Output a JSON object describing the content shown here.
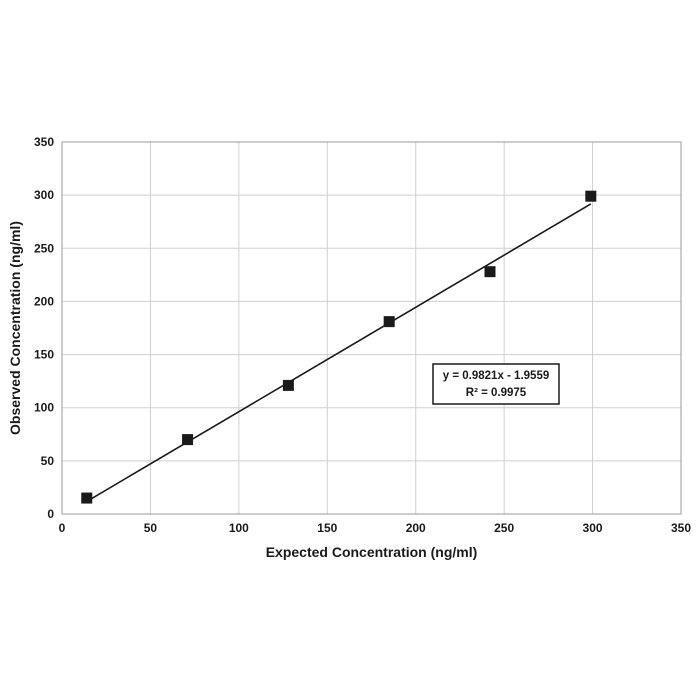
{
  "chart_data": {
    "type": "scatter",
    "title": "",
    "xlabel": "Expected Concentration (ng/ml)",
    "ylabel": "Observed Concentration (ng/ml)",
    "xlim": [
      0,
      350
    ],
    "ylim": [
      0,
      350
    ],
    "x_ticks": [
      0,
      50,
      100,
      150,
      200,
      250,
      300,
      350
    ],
    "y_ticks": [
      0,
      50,
      100,
      150,
      200,
      250,
      300,
      350
    ],
    "grid": true,
    "legend": "none",
    "marker": "square",
    "marker_color": "#1a1a1a",
    "series": [
      {
        "x": [
          14,
          71,
          128,
          185,
          242,
          299
        ],
        "y": [
          15,
          70,
          121,
          181,
          228,
          299
        ]
      }
    ],
    "trendline": {
      "type": "linear",
      "slope": 0.9821,
      "intercept": -1.9559,
      "x_range": [
        14,
        299
      ],
      "equation": "y = 0.9821x - 1.9559",
      "r_squared": "R² = 0.9975"
    }
  }
}
